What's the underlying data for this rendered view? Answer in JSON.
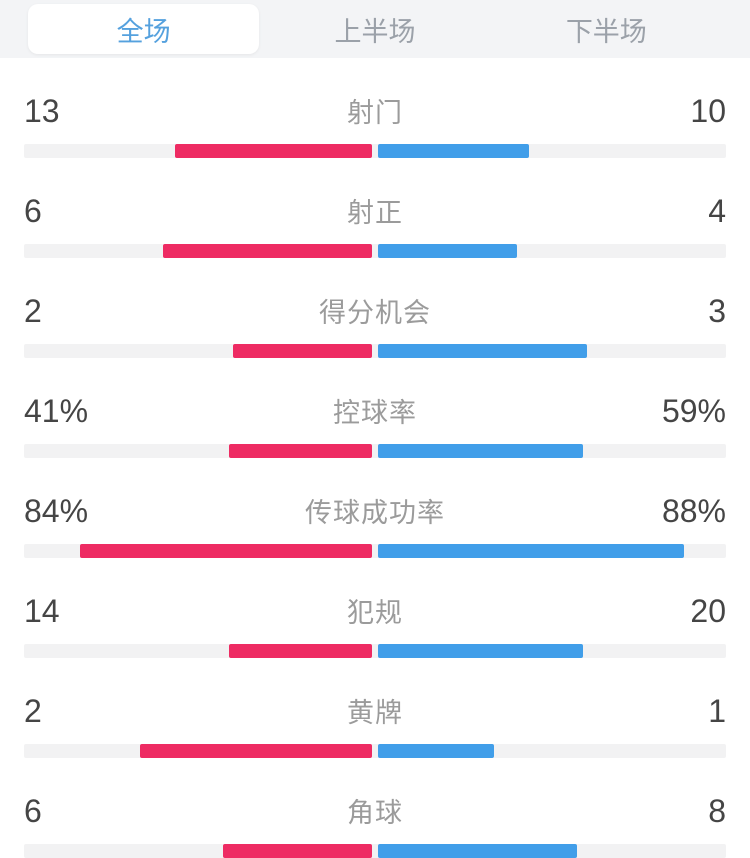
{
  "tabs": {
    "items": [
      {
        "label": "全场",
        "state": "active"
      },
      {
        "label": "上半场",
        "state": "inactive"
      },
      {
        "label": "下半场",
        "state": "inactive"
      }
    ]
  },
  "stats": {
    "rows": [
      {
        "label": "射门",
        "home": "13",
        "away": "10"
      },
      {
        "label": "射正",
        "home": "6",
        "away": "4"
      },
      {
        "label": "得分机会",
        "home": "2",
        "away": "3"
      },
      {
        "label": "控球率",
        "home": "41%",
        "away": "59%"
      },
      {
        "label": "传球成功率",
        "home": "84%",
        "away": "88%"
      },
      {
        "label": "犯规",
        "home": "14",
        "away": "20"
      },
      {
        "label": "黄牌",
        "home": "2",
        "away": "1"
      },
      {
        "label": "角球",
        "home": "6",
        "away": "8"
      }
    ]
  },
  "chart_data": {
    "type": "bar",
    "orientation": "horizontal-diverging",
    "categories": [
      "射门",
      "射正",
      "得分机会",
      "控球率",
      "传球成功率",
      "犯规",
      "黄牌",
      "角球"
    ],
    "series": [
      {
        "name": "home",
        "color": "#ee2b63",
        "values": [
          13,
          6,
          2,
          41,
          84,
          14,
          2,
          6
        ]
      },
      {
        "name": "away",
        "color": "#419ee9",
        "values": [
          10,
          4,
          3,
          59,
          88,
          20,
          1,
          8
        ]
      }
    ],
    "percent_rows": [
      "控球率",
      "传球成功率"
    ],
    "title": "全场",
    "legend_position": "none",
    "grid": false
  },
  "colors": {
    "home_bar": "#ee2b63",
    "away_bar": "#419ee9",
    "track": "#f2f2f3",
    "tabbar_bg": "#f3f4f6",
    "active_tab_bg": "#ffffff",
    "active_tab_text": "#55a1de",
    "inactive_tab_text": "#9ba1a9",
    "value_text": "#454545",
    "label_text": "#9b9b9b"
  }
}
